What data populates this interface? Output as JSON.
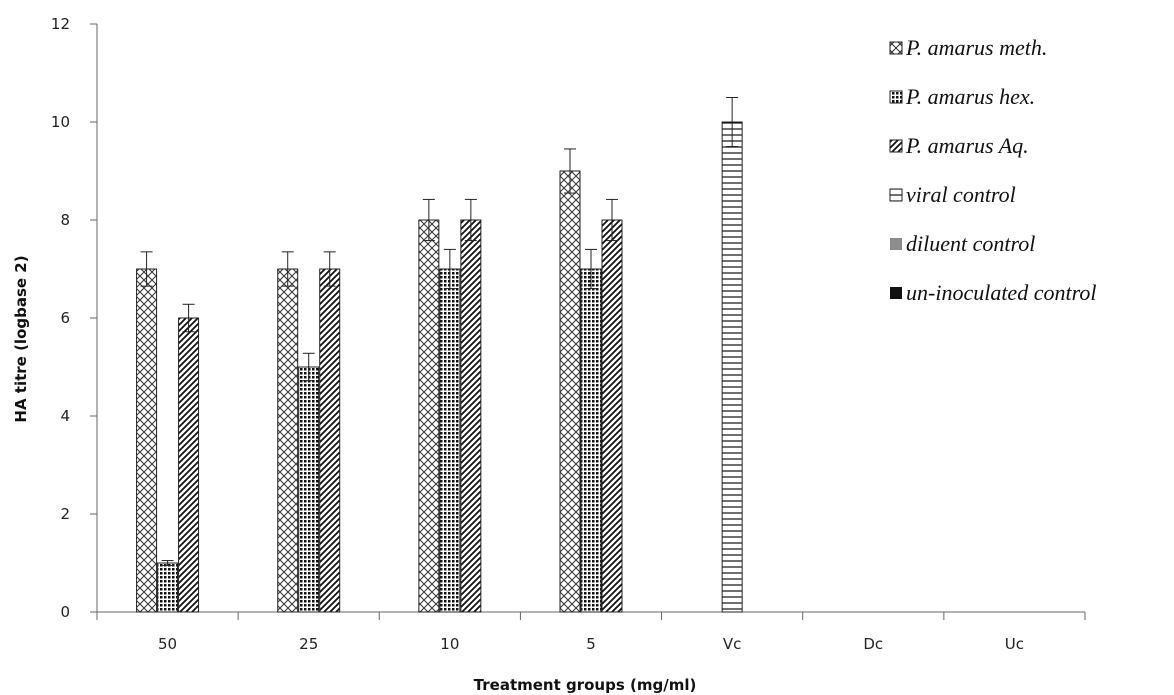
{
  "chart_data": {
    "type": "bar",
    "xlabel": "Treatment groups (mg/ml)",
    "ylabel": "HA titre (logbase 2)",
    "ylim": [
      0,
      12
    ],
    "yticks": [
      0,
      2,
      4,
      6,
      8,
      10,
      12
    ],
    "grid": false,
    "legend_position": "right",
    "categories": [
      "50",
      "25",
      "10",
      "5",
      "Vc",
      "Dc",
      "Uc"
    ],
    "series": [
      {
        "name": "P. amarus meth.",
        "pattern": "crosshatch",
        "values": [
          7,
          7,
          8,
          9,
          null,
          null,
          null
        ],
        "errors": [
          0.35,
          0.35,
          0.42,
          0.45,
          null,
          null,
          null
        ]
      },
      {
        "name": "P. amarus hex.",
        "pattern": "dots",
        "values": [
          1,
          5,
          7,
          7,
          null,
          null,
          null
        ],
        "errors": [
          0.05,
          0.28,
          0.4,
          0.4,
          null,
          null,
          null
        ]
      },
      {
        "name": "P. amarus Aq.",
        "pattern": "diagonal",
        "values": [
          6,
          7,
          8,
          8,
          null,
          null,
          null
        ],
        "errors": [
          0.28,
          0.35,
          0.42,
          0.42,
          null,
          null,
          null
        ]
      },
      {
        "name": "viral control",
        "pattern": "horizontal",
        "values": [
          null,
          null,
          null,
          null,
          10,
          null,
          null
        ],
        "errors": [
          null,
          null,
          null,
          null,
          0.5,
          null,
          null
        ]
      },
      {
        "name": "diluent control",
        "pattern": "solid-gray",
        "values": [
          null,
          null,
          null,
          null,
          null,
          0,
          null
        ],
        "errors": [
          null,
          null,
          null,
          null,
          null,
          null,
          null
        ]
      },
      {
        "name": "un-inoculated control",
        "pattern": "solid-black",
        "values": [
          null,
          null,
          null,
          null,
          null,
          null,
          0
        ],
        "errors": [
          null,
          null,
          null,
          null,
          null,
          null,
          null
        ]
      }
    ]
  }
}
